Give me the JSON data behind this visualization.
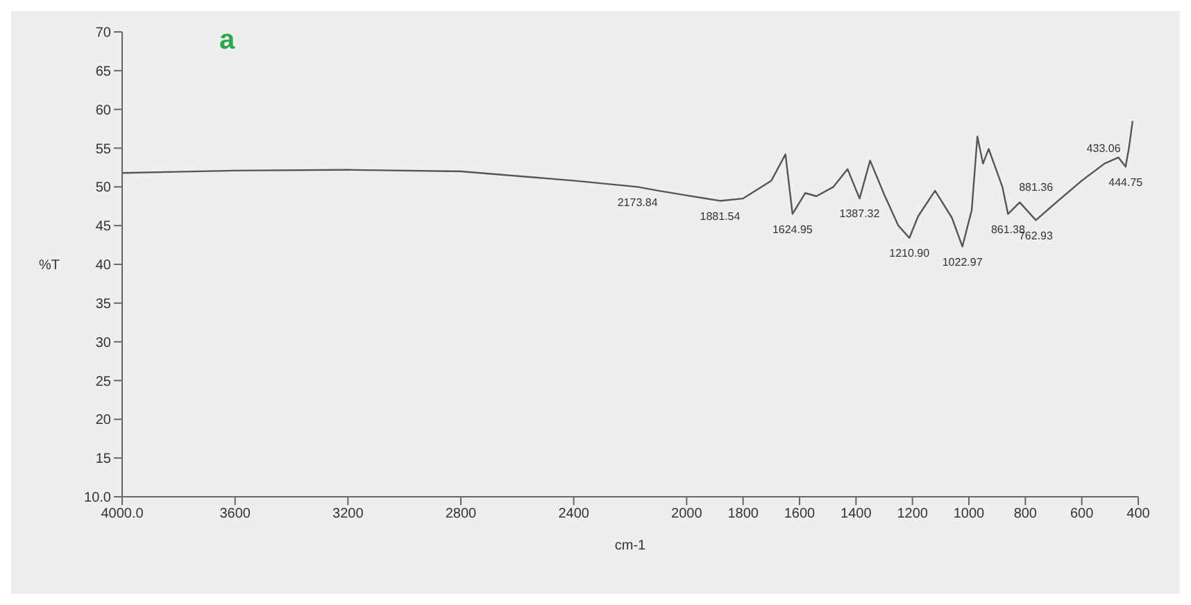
{
  "chart_data": {
    "type": "line",
    "title": "a",
    "xlabel": "cm-1",
    "ylabel": "%T",
    "xlim": [
      4000,
      400
    ],
    "xticks": [
      {
        "value": 4000,
        "label": "4000.0"
      },
      3600,
      3200,
      2800,
      2400,
      2000,
      1800,
      1600,
      1400,
      1200,
      1000,
      800,
      600,
      400
    ],
    "ylim": [
      10,
      70
    ],
    "yticks": [
      {
        "value": 10,
        "label": "10.0"
      },
      15,
      20,
      25,
      30,
      35,
      40,
      45,
      50,
      55,
      60,
      65,
      70
    ],
    "grid": false,
    "marker": "none",
    "series": [
      {
        "color": "#555555",
        "x": [
          4000,
          3600,
          3200,
          2800,
          2400,
          2173.84,
          2100,
          2000,
          1881.54,
          1800,
          1700,
          1650,
          1624.95,
          1580,
          1540,
          1480,
          1430,
          1387.32,
          1350,
          1300,
          1250,
          1210.9,
          1180,
          1120,
          1060,
          1022.97,
          990,
          970,
          950,
          930,
          881.36,
          861.38,
          820,
          762.93,
          700,
          600,
          520,
          470,
          444.75,
          433.06,
          420
        ],
        "values": [
          51.8,
          52.1,
          52.2,
          52.0,
          50.8,
          50.0,
          49.5,
          48.9,
          48.2,
          48.5,
          50.8,
          54.2,
          46.5,
          49.2,
          48.8,
          50.0,
          52.3,
          48.5,
          53.4,
          49.0,
          45.0,
          43.4,
          46.2,
          49.5,
          46.0,
          42.3,
          47.0,
          56.5,
          53.0,
          54.9,
          50.0,
          46.5,
          48.0,
          45.7,
          47.7,
          50.8,
          53.0,
          53.8,
          52.6,
          55.0,
          58.5
        ]
      }
    ],
    "annotations": [
      {
        "text": "2173.84",
        "x": 2173.84,
        "y": 50.0
      },
      {
        "text": "1881.54",
        "x": 1881.54,
        "y": 48.2
      },
      {
        "text": "1624.95",
        "x": 1624.95,
        "y": 46.5
      },
      {
        "text": "1387.32",
        "x": 1387.32,
        "y": 48.5
      },
      {
        "text": "1210.90",
        "x": 1210.9,
        "y": 43.4
      },
      {
        "text": "1022.97",
        "x": 1022.97,
        "y": 42.3
      },
      {
        "text": "881.36",
        "x": 881.36,
        "y": 50.0
      },
      {
        "text": "861.38",
        "x": 861.38,
        "y": 46.5
      },
      {
        "text": "762.93",
        "x": 762.93,
        "y": 45.7
      },
      {
        "text": "433.06",
        "x": 433.06,
        "y": 55.0
      },
      {
        "text": "444.75",
        "x": 444.75,
        "y": 52.6
      }
    ]
  }
}
